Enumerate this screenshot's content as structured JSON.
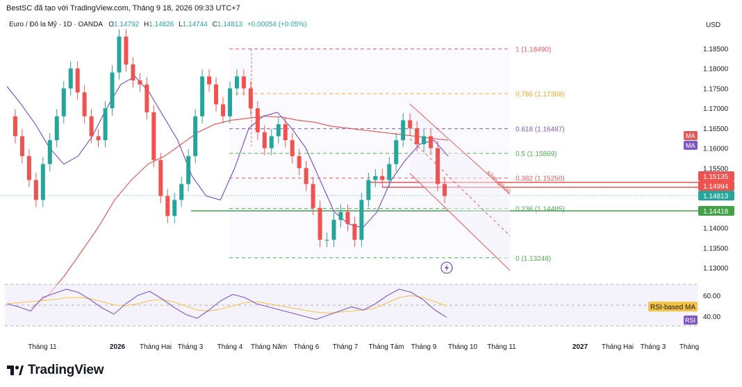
{
  "header": {
    "text": "BestSC đã tạo với TradingView.com, Tháng 9 18, 2026 09:33 UTC+7"
  },
  "legend": {
    "symbol": "Euro / Đô la Mỹ · 1D · OANDA",
    "o_label": "O",
    "o_value": "1.14792",
    "h_label": "H",
    "h_value": "1.14826",
    "l_label": "L",
    "l_value": "1.14744",
    "c_label": "C",
    "c_value": "1.14813",
    "change": "+0.00054 (+0.05%)"
  },
  "currency": "USD",
  "colors": {
    "up": "#26a69a",
    "down": "#ef5350",
    "ma_red": "#e05a5a",
    "ma_purple": "#7e57c2",
    "fib_red": "#e45b5b",
    "fib_orange": "#f5a623",
    "fib_green": "#4caf50",
    "rsi_line": "#7e57c2",
    "rsi_ma": "#f5c342",
    "price_tag_green": "#26a69a",
    "support_green": "#43a047"
  },
  "indicators": {
    "ma1_label": "MA",
    "ma2_label": "MA",
    "rsi_ma_label": "RSI-based MA",
    "rsi_label": "RSI",
    "channel_label": "Kênh giá (a)"
  },
  "price_tags": {
    "t1": "1.15135",
    "t2": "1.14994",
    "t3": "1.14813",
    "t4": "1.14418"
  },
  "fib_levels": [
    {
      "label": "1 (1.18490)",
      "value": 1.1849,
      "color": "#e45b5b"
    },
    {
      "label": "0.786 (1.17368)",
      "value": 1.17368,
      "color": "#f5a623"
    },
    {
      "label": "0.618 (1.16487)",
      "value": 1.16487,
      "color": "#7e57c2"
    },
    {
      "label": "0.5 (1.15869)",
      "value": 1.15869,
      "color": "#4caf50"
    },
    {
      "label": "0.382 (1.15250)",
      "value": 1.1525,
      "color": "#e45b5b"
    },
    {
      "label": "0.236 (1.14485)",
      "value": 1.14485,
      "color": "#4caf50"
    },
    {
      "label": "0 (1.13248)",
      "value": 1.13248,
      "color": "#4caf50"
    }
  ],
  "chart_data": {
    "type": "line",
    "price_axis": {
      "ticks": [
        "1.18500",
        "1.18000",
        "1.17500",
        "1.17000",
        "1.16500",
        "1.16000",
        "1.15500",
        "1.15000",
        "1.14500",
        "1.14000",
        "1.13500",
        "1.13000"
      ],
      "values": [
        1.185,
        1.18,
        1.175,
        1.17,
        1.165,
        1.16,
        1.155,
        1.15,
        1.145,
        1.14,
        1.135,
        1.13
      ]
    },
    "rsi_axis": {
      "ticks": [
        "60.00",
        "40.00"
      ],
      "values": [
        60,
        40
      ]
    },
    "time_axis": [
      "Tháng 11",
      "2026",
      "Tháng Hai",
      "Tháng 3",
      "Tháng 4",
      "Tháng Năm",
      "Tháng 6",
      "Tháng 7",
      "Tháng Tám",
      "Tháng 9",
      "Tháng 10",
      "Tháng 11",
      "2027",
      "Tháng Hai",
      "Tháng 3",
      "Tháng"
    ],
    "price_series": [
      1.168,
      1.163,
      1.158,
      1.152,
      1.147,
      1.156,
      1.162,
      1.168,
      1.175,
      1.18,
      1.174,
      1.168,
      1.163,
      1.162,
      1.17,
      1.179,
      1.188,
      1.181,
      1.177,
      1.176,
      1.169,
      1.157,
      1.148,
      1.143,
      1.147,
      1.151,
      1.158,
      1.168,
      1.178,
      1.176,
      1.171,
      1.168,
      1.175,
      1.178,
      1.175,
      1.17,
      1.164,
      1.16,
      1.163,
      1.166,
      1.162,
      1.158,
      1.155,
      1.151,
      1.145,
      1.137,
      1.137,
      1.142,
      1.144,
      1.141,
      1.137,
      1.147,
      1.152,
      1.153,
      1.152,
      1.156,
      1.162,
      1.167,
      1.165,
      1.161,
      1.163,
      1.16,
      1.151,
      1.148
    ],
    "ma_long": [
      1.12,
      1.123,
      1.128,
      1.134,
      1.14,
      1.147,
      1.152,
      1.156,
      1.158,
      1.161,
      1.164,
      1.166,
      1.167,
      1.1675,
      1.168,
      1.1678,
      1.167,
      1.1665,
      1.1655,
      1.165,
      1.1645,
      1.164,
      1.1635,
      1.163,
      1.1625,
      1.162
    ],
    "ma_short": [
      1.1755,
      1.171,
      1.166,
      1.16,
      1.156,
      1.158,
      1.163,
      1.17,
      1.176,
      1.178,
      1.174,
      1.168,
      1.162,
      1.153,
      1.148,
      1.147,
      1.155,
      1.165,
      1.168,
      1.169,
      1.165,
      1.16,
      1.152,
      1.144,
      1.141,
      1.14,
      1.144,
      1.152,
      1.157,
      1.161,
      1.162,
      1.158
    ],
    "rsi_series": [
      52,
      49,
      45,
      58,
      62,
      66,
      63,
      56,
      48,
      42,
      52,
      60,
      64,
      57,
      49,
      42,
      38,
      46,
      55,
      61,
      58,
      52,
      49,
      46,
      43,
      40,
      37,
      41,
      45,
      49,
      46,
      52,
      60,
      66,
      63,
      56,
      46,
      39
    ],
    "rsi_ma": [
      52,
      53,
      54,
      55,
      56,
      58,
      58,
      57,
      54,
      51,
      50,
      52,
      55,
      56,
      54,
      50,
      46,
      45,
      47,
      50,
      53,
      54,
      52,
      50,
      48,
      46,
      44,
      43,
      44,
      45,
      46,
      48,
      53,
      58,
      60,
      58,
      54,
      50
    ]
  }
}
